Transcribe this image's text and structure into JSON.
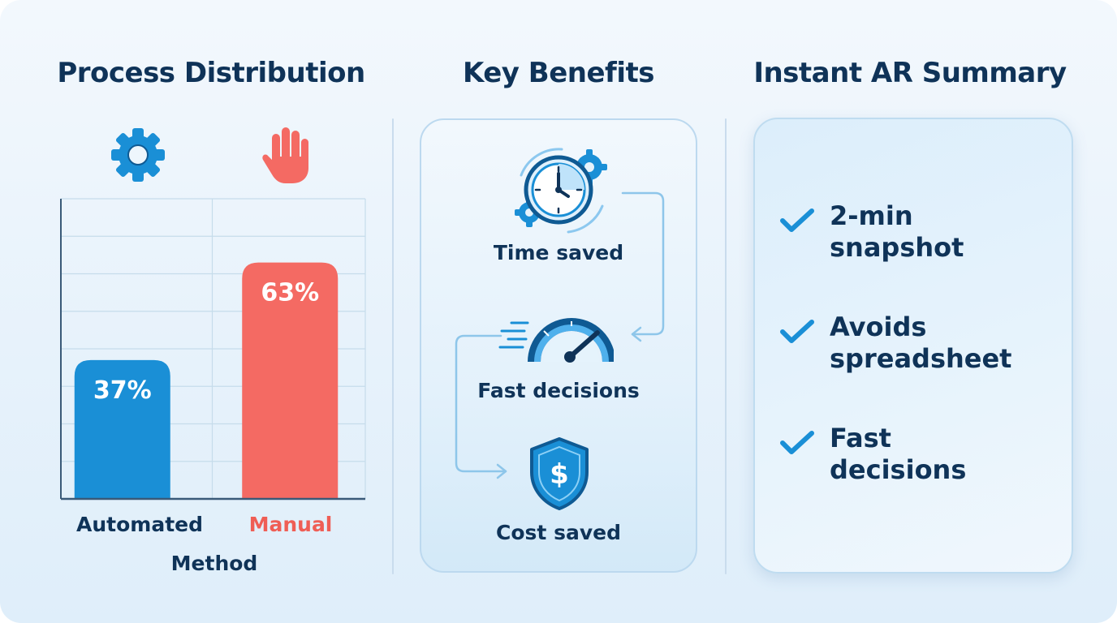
{
  "sections": {
    "distribution_title": "Process Distribution",
    "benefits_title": "Key Benefits",
    "summary_title": "Instant AR Summary"
  },
  "chart_data": {
    "type": "bar",
    "title": "Process Distribution",
    "xlabel": "Method",
    "ylabel": "",
    "categories": [
      "Automated",
      "Manual"
    ],
    "values": [
      37,
      63
    ],
    "value_labels": [
      "37%",
      "63%"
    ],
    "ylim": [
      0,
      80
    ],
    "grid": true,
    "colors": [
      "#1a8fd6",
      "#f46a63"
    ],
    "label_colors": [
      "#0f3358",
      "#ef5e55"
    ],
    "category_icons": [
      "gear-icon",
      "hand-icon"
    ]
  },
  "benefits": [
    {
      "label": "Time saved",
      "icon": "clock-gears-icon"
    },
    {
      "label": "Fast decisions",
      "icon": "speedometer-icon"
    },
    {
      "label": "Cost saved",
      "icon": "dollar-shield-icon"
    }
  ],
  "summary": {
    "items": [
      {
        "line1": "2-min",
        "line2": "snapshot",
        "icon": "check-icon"
      },
      {
        "line1": "Avoids",
        "line2": "spreadsheet",
        "icon": "check-icon"
      },
      {
        "line1": "Fast",
        "line2": "decisions",
        "icon": "check-icon"
      }
    ]
  },
  "colors": {
    "navy": "#0f3358",
    "blue": "#1a8fd6",
    "coral": "#f46a63"
  }
}
